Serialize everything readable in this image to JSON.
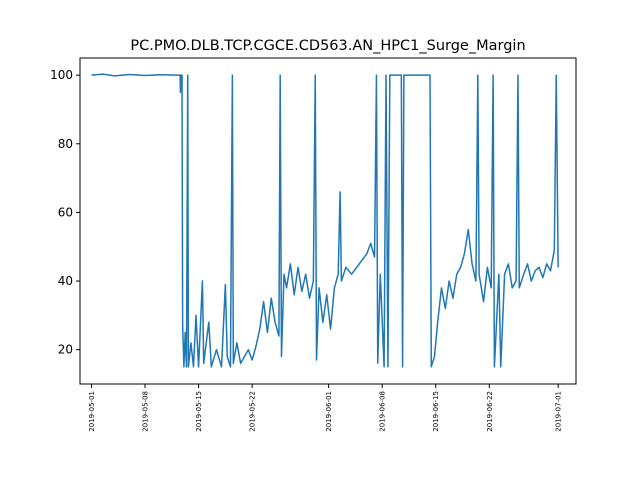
{
  "chart_data": {
    "type": "line",
    "title": "PC.PMO.DLB.TCP.CGCE.CD563.AN_HPC1_Surge_Margin",
    "xlabel": "",
    "ylabel": "",
    "xlim": [
      "2019-04-29T12:00",
      "2019-07-03T08:00"
    ],
    "ylim": [
      10,
      105
    ],
    "x_ticks": [
      "2019-05-01",
      "2019-05-08",
      "2019-05-15",
      "2019-05-22",
      "2019-06-01",
      "2019-06-08",
      "2019-06-15",
      "2019-06-22",
      "2019-07-01"
    ],
    "y_ticks": [
      20,
      40,
      60,
      80,
      100
    ],
    "grid": false,
    "series": [
      {
        "color": "#1f77b4",
        "points": [
          [
            "2019-05-01T00:00",
            100
          ],
          [
            "2019-05-02T12:00",
            100.3
          ],
          [
            "2019-05-04T00:00",
            99.8
          ],
          [
            "2019-05-06T00:00",
            100.2
          ],
          [
            "2019-05-08T00:00",
            99.9
          ],
          [
            "2019-05-10T00:00",
            100.1
          ],
          [
            "2019-05-12T00:00",
            100
          ],
          [
            "2019-05-12T14:00",
            100
          ],
          [
            "2019-05-12T15:00",
            95
          ],
          [
            "2019-05-12T16:00",
            100
          ],
          [
            "2019-05-12T20:00",
            100
          ],
          [
            "2019-05-12T22:00",
            27
          ],
          [
            "2019-05-13T02:00",
            15
          ],
          [
            "2019-05-13T06:00",
            25
          ],
          [
            "2019-05-13T10:00",
            15
          ],
          [
            "2019-05-13T14:00",
            100
          ],
          [
            "2019-05-13T16:00",
            15
          ],
          [
            "2019-05-14T00:00",
            22
          ],
          [
            "2019-05-14T08:00",
            15
          ],
          [
            "2019-05-14T16:00",
            30
          ],
          [
            "2019-05-15T00:00",
            15
          ],
          [
            "2019-05-15T12:00",
            40
          ],
          [
            "2019-05-15T16:00",
            16
          ],
          [
            "2019-05-16T08:00",
            28
          ],
          [
            "2019-05-16T16:00",
            15
          ],
          [
            "2019-05-17T08:00",
            20
          ],
          [
            "2019-05-18T00:00",
            15
          ],
          [
            "2019-05-18T12:00",
            39
          ],
          [
            "2019-05-18T18:00",
            18
          ],
          [
            "2019-05-19T04:00",
            15
          ],
          [
            "2019-05-19T10:00",
            100
          ],
          [
            "2019-05-19T13:00",
            16
          ],
          [
            "2019-05-20T00:00",
            22
          ],
          [
            "2019-05-20T12:00",
            16
          ],
          [
            "2019-05-21T00:00",
            18
          ],
          [
            "2019-05-21T12:00",
            20
          ],
          [
            "2019-05-22T00:00",
            17
          ],
          [
            "2019-05-22T12:00",
            21
          ],
          [
            "2019-05-23T00:00",
            26
          ],
          [
            "2019-05-23T12:00",
            34
          ],
          [
            "2019-05-24T00:00",
            25
          ],
          [
            "2019-05-24T12:00",
            35
          ],
          [
            "2019-05-25T00:00",
            28
          ],
          [
            "2019-05-25T12:00",
            24
          ],
          [
            "2019-05-25T16:00",
            100
          ],
          [
            "2019-05-25T20:00",
            18
          ],
          [
            "2019-05-26T04:00",
            42
          ],
          [
            "2019-05-26T12:00",
            38
          ],
          [
            "2019-05-27T00:00",
            45
          ],
          [
            "2019-05-27T12:00",
            36
          ],
          [
            "2019-05-28T00:00",
            44
          ],
          [
            "2019-05-28T12:00",
            37
          ],
          [
            "2019-05-29T00:00",
            42
          ],
          [
            "2019-05-29T12:00",
            35
          ],
          [
            "2019-05-30T00:00",
            40
          ],
          [
            "2019-05-30T06:00",
            100
          ],
          [
            "2019-05-30T10:00",
            17
          ],
          [
            "2019-05-30T18:00",
            38
          ],
          [
            "2019-05-31T06:00",
            28
          ],
          [
            "2019-05-31T18:00",
            36
          ],
          [
            "2019-06-01T06:00",
            26
          ],
          [
            "2019-06-01T18:00",
            38
          ],
          [
            "2019-06-02T06:00",
            42
          ],
          [
            "2019-06-02T12:00",
            66
          ],
          [
            "2019-06-02T16:00",
            40
          ],
          [
            "2019-06-03T06:00",
            44
          ],
          [
            "2019-06-04T00:00",
            42
          ],
          [
            "2019-06-05T00:00",
            45
          ],
          [
            "2019-06-06T00:00",
            48
          ],
          [
            "2019-06-06T12:00",
            51
          ],
          [
            "2019-06-07T00:00",
            47
          ],
          [
            "2019-06-07T06:00",
            100
          ],
          [
            "2019-06-07T10:00",
            16
          ],
          [
            "2019-06-07T18:00",
            42
          ],
          [
            "2019-06-08T06:00",
            15
          ],
          [
            "2019-06-08T12:00",
            100
          ],
          [
            "2019-06-08T18:00",
            15
          ],
          [
            "2019-06-09T00:00",
            100
          ],
          [
            "2019-06-10T00:00",
            100
          ],
          [
            "2019-06-10T12:00",
            100
          ],
          [
            "2019-06-10T16:00",
            15
          ],
          [
            "2019-06-10T20:00",
            100
          ],
          [
            "2019-06-12T00:00",
            100
          ],
          [
            "2019-06-13T00:00",
            100
          ],
          [
            "2019-06-14T00:00",
            100
          ],
          [
            "2019-06-14T06:00",
            100
          ],
          [
            "2019-06-14T10:00",
            15
          ],
          [
            "2019-06-14T20:00",
            18
          ],
          [
            "2019-06-15T06:00",
            28
          ],
          [
            "2019-06-15T18:00",
            38
          ],
          [
            "2019-06-16T06:00",
            32
          ],
          [
            "2019-06-16T18:00",
            40
          ],
          [
            "2019-06-17T06:00",
            35
          ],
          [
            "2019-06-17T18:00",
            42
          ],
          [
            "2019-06-18T06:00",
            44
          ],
          [
            "2019-06-18T18:00",
            48
          ],
          [
            "2019-06-19T06:00",
            55
          ],
          [
            "2019-06-19T18:00",
            45
          ],
          [
            "2019-06-20T06:00",
            40
          ],
          [
            "2019-06-20T12:00",
            100
          ],
          [
            "2019-06-20T16:00",
            42
          ],
          [
            "2019-06-21T06:00",
            34
          ],
          [
            "2019-06-21T18:00",
            44
          ],
          [
            "2019-06-22T06:00",
            38
          ],
          [
            "2019-06-22T12:00",
            100
          ],
          [
            "2019-06-22T16:00",
            15
          ],
          [
            "2019-06-23T06:00",
            42
          ],
          [
            "2019-06-23T12:00",
            15
          ],
          [
            "2019-06-24T00:00",
            42
          ],
          [
            "2019-06-24T12:00",
            45
          ],
          [
            "2019-06-25T00:00",
            38
          ],
          [
            "2019-06-25T12:00",
            40
          ],
          [
            "2019-06-25T18:00",
            100
          ],
          [
            "2019-06-25T22:00",
            38
          ],
          [
            "2019-06-26T12:00",
            42
          ],
          [
            "2019-06-27T00:00",
            45
          ],
          [
            "2019-06-27T12:00",
            40
          ],
          [
            "2019-06-28T00:00",
            43
          ],
          [
            "2019-06-28T12:00",
            44
          ],
          [
            "2019-06-29T00:00",
            41
          ],
          [
            "2019-06-29T12:00",
            45
          ],
          [
            "2019-06-30T00:00",
            43
          ],
          [
            "2019-06-30T12:00",
            49
          ],
          [
            "2019-06-30T18:00",
            100
          ],
          [
            "2019-07-01T00:00",
            44
          ]
        ]
      }
    ]
  }
}
